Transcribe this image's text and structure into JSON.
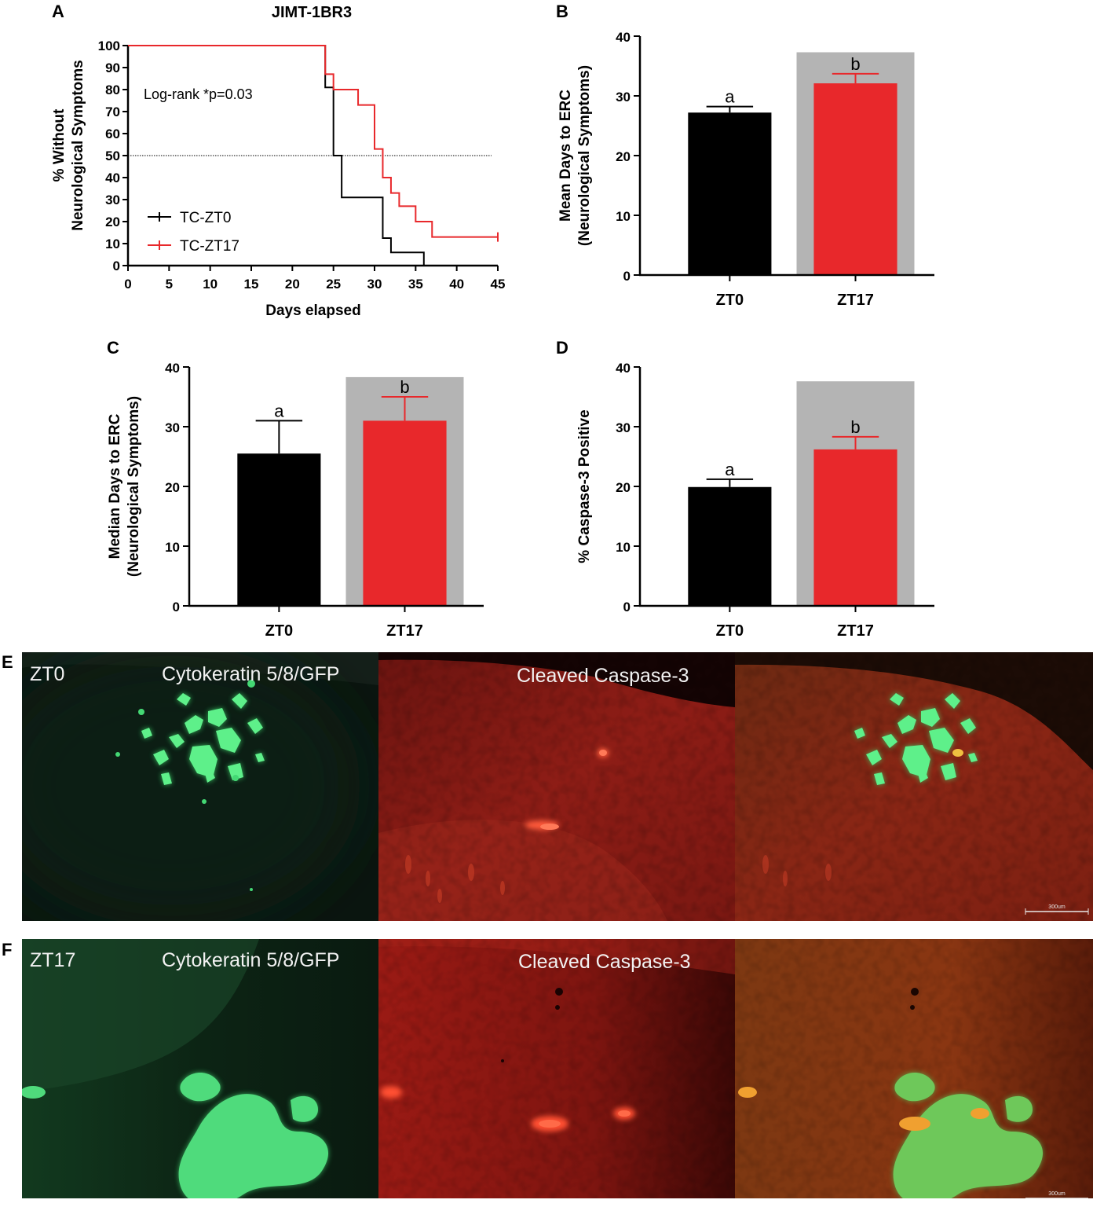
{
  "panels": {
    "A": "A",
    "B": "B",
    "C": "C",
    "D": "D",
    "E": "E",
    "F": "F"
  },
  "colors": {
    "zt0": "#000000",
    "zt17": "#e8282b",
    "shade": "#b4b4b4"
  },
  "chart_data": [
    {
      "id": "A",
      "type": "line",
      "title": "JIMT-1BR3",
      "xlabel": "Days elapsed",
      "ylabel_lines": [
        "% Without",
        "Neurological Symptoms"
      ],
      "xlim": [
        0,
        45
      ],
      "ylim": [
        0,
        100
      ],
      "xticks": [
        0,
        5,
        10,
        15,
        20,
        25,
        30,
        35,
        40,
        45
      ],
      "yticks": [
        0,
        10,
        20,
        30,
        40,
        50,
        60,
        70,
        80,
        90,
        100
      ],
      "reference_line_y": 50,
      "annotation": "Log-rank *p=0.03",
      "series": [
        {
          "name": "TC-ZT0",
          "color": "#000000",
          "steps": [
            [
              0,
              100
            ],
            [
              24,
              100
            ],
            [
              24,
              81
            ],
            [
              25,
              81
            ],
            [
              25,
              50
            ],
            [
              26,
              50
            ],
            [
              26,
              31
            ],
            [
              31,
              31
            ],
            [
              31,
              12.5
            ],
            [
              32,
              12.5
            ],
            [
              32,
              6
            ],
            [
              36,
              6
            ],
            [
              36,
              0
            ]
          ]
        },
        {
          "name": "TC-ZT17",
          "color": "#e8282b",
          "steps": [
            [
              0,
              100
            ],
            [
              24,
              100
            ],
            [
              24,
              87
            ],
            [
              25,
              87
            ],
            [
              25,
              80
            ],
            [
              28,
              80
            ],
            [
              28,
              73
            ],
            [
              30,
              73
            ],
            [
              30,
              53
            ],
            [
              31,
              53
            ],
            [
              31,
              40
            ],
            [
              32,
              40
            ],
            [
              32,
              33
            ],
            [
              33,
              33
            ],
            [
              33,
              27
            ],
            [
              35,
              27
            ],
            [
              35,
              20
            ],
            [
              37,
              20
            ],
            [
              37,
              13
            ],
            [
              45,
              13
            ]
          ],
          "censor_marks_x": [
            45
          ]
        }
      ]
    },
    {
      "id": "B",
      "type": "bar",
      "ylabel_lines": [
        "Mean Days to ERC",
        "(Neurological Symptoms)"
      ],
      "ylim": [
        0,
        40
      ],
      "yticks": [
        0,
        10,
        20,
        30,
        40
      ],
      "categories": [
        "ZT0",
        "ZT17"
      ],
      "values": [
        27.2,
        32.1
      ],
      "errors": [
        1.0,
        1.6
      ],
      "letters": [
        "a",
        "b"
      ],
      "shaded_category": "ZT17",
      "shade_top": 37.3
    },
    {
      "id": "C",
      "type": "bar",
      "ylabel_lines": [
        "Median Days to ERC",
        "(Neurological Symptoms)"
      ],
      "ylim": [
        0,
        40
      ],
      "yticks": [
        0,
        10,
        20,
        30,
        40
      ],
      "categories": [
        "ZT0",
        "ZT17"
      ],
      "values": [
        25.5,
        31
      ],
      "errors": [
        5.5,
        4
      ],
      "letters": [
        "a",
        "b"
      ],
      "shaded_category": "ZT17",
      "shade_top": 38.3
    },
    {
      "id": "D",
      "type": "bar",
      "ylabel_lines": [
        "% Caspase-3 Positive"
      ],
      "ylim": [
        0,
        40
      ],
      "yticks": [
        0,
        10,
        20,
        30,
        40
      ],
      "categories": [
        "ZT0",
        "ZT17"
      ],
      "values": [
        19.9,
        26.2
      ],
      "errors": [
        1.3,
        2.1
      ],
      "letters": [
        "a",
        "b"
      ],
      "shaded_category": "ZT17",
      "shade_top": 37.6
    }
  ],
  "micrographs": {
    "E": {
      "condition": "ZT0",
      "labels": [
        "Cytokeratin 5/8/GFP",
        "Cleaved Caspase-3"
      ],
      "scale_bar": "300um"
    },
    "F": {
      "condition": "ZT17",
      "labels": [
        "Cytokeratin 5/8/GFP",
        "Cleaved Caspase-3"
      ],
      "scale_bar": "300um"
    }
  }
}
